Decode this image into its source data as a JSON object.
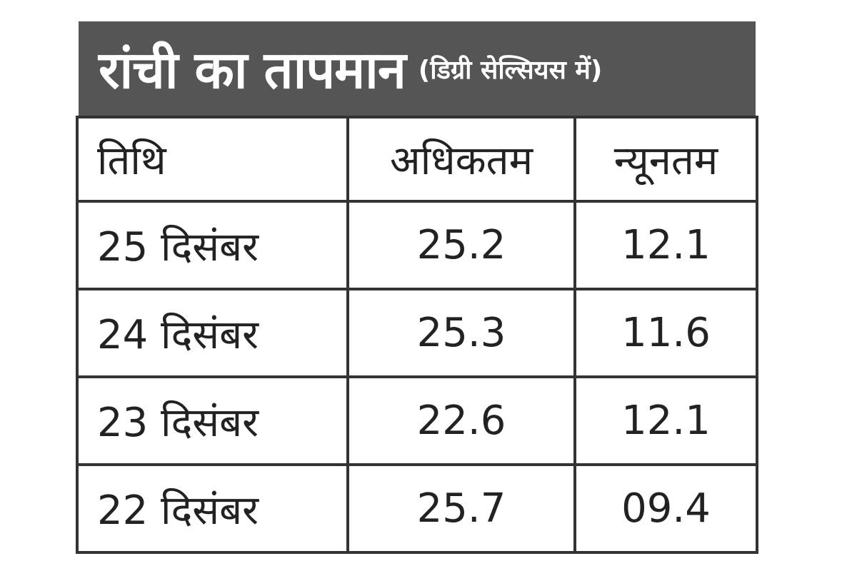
{
  "title": {
    "main": "रांची का तापमान",
    "sub": "(डिग्री सेल्सियस में)"
  },
  "chart_data": {
    "type": "table",
    "title": "रांची का तापमान",
    "subtitle": "(डिग्री सेल्सियस में)",
    "columns": [
      "तिथि",
      "अधिकतम",
      "न्यूनतम"
    ],
    "rows": [
      [
        "25 दिसंबर",
        "25.2",
        "12.1"
      ],
      [
        "24 दिसंबर",
        "25.3",
        "11.6"
      ],
      [
        "23 दिसंबर",
        "22.6",
        "12.1"
      ],
      [
        "22 दिसंबर",
        "25.7",
        "09.4"
      ]
    ]
  },
  "colors": {
    "header_bg": "#555555",
    "header_text": "#ffffff",
    "border": "#333333"
  }
}
